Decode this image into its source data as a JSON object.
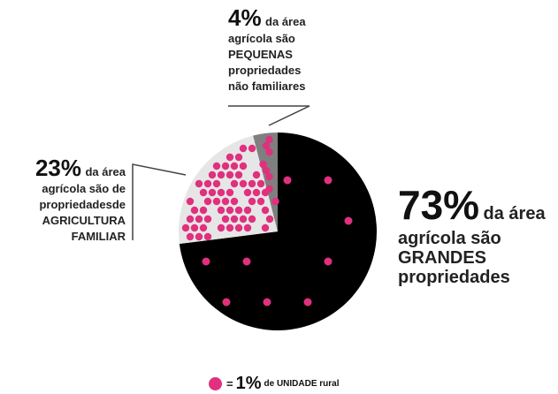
{
  "chart_data": {
    "type": "pie",
    "slices": [
      {
        "value": 73,
        "color": "#000000",
        "dots": 10,
        "percent_label": "73%",
        "text": "da área",
        "lines": [
          "agrícola são",
          "GRANDES",
          "propriedades"
        ]
      },
      {
        "value": 23,
        "color": "#e6e6e6",
        "dots": 60,
        "percent_label": "23%",
        "text": "da área",
        "lines": [
          "agrícola são  de",
          "propriedadesde",
          "AGRICULTURA",
          "FAMILIAR"
        ]
      },
      {
        "value": 4,
        "color": "#7f7f7f",
        "dots": 8,
        "percent_label": "4%",
        "text": "da área",
        "lines": [
          "agrícola são",
          "PEQUENAS",
          "propriedades",
          "não familiares"
        ]
      }
    ],
    "dot_color": "#e0307e",
    "legend": {
      "equals": "=",
      "percent": "1%",
      "text": "de UNIDADE rural"
    }
  }
}
